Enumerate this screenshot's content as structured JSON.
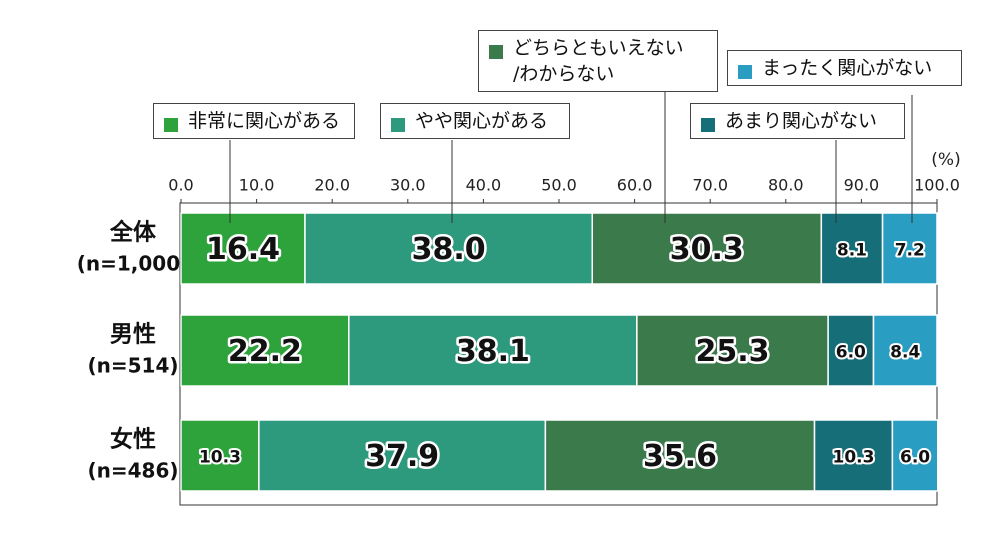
{
  "chart_data": {
    "type": "stacked-bar-horizontal",
    "unit": "(%)",
    "categories": [
      "全体",
      "男性",
      "女性"
    ],
    "category_notes": [
      "(n=1,000)",
      "(n=514)",
      "(n=486)"
    ],
    "xlim": [
      0,
      100
    ],
    "xticks": [
      {
        "value": 0,
        "label": "0.0"
      },
      {
        "value": 10,
        "label": "10.0"
      },
      {
        "value": 20,
        "label": "20.0"
      },
      {
        "value": 30,
        "label": "30.0"
      },
      {
        "value": 40,
        "label": "40.0"
      },
      {
        "value": 50,
        "label": "50.0"
      },
      {
        "value": 60,
        "label": "60.0"
      },
      {
        "value": 70,
        "label": "70.0"
      },
      {
        "value": 80,
        "label": "80.0"
      },
      {
        "value": 90,
        "label": "90.0"
      },
      {
        "value": 100,
        "label": "100.0"
      }
    ],
    "series": [
      {
        "name": "非常に関心がある",
        "color": "#2ea33b",
        "values": [
          16.4,
          22.2,
          10.3
        ],
        "value_labels": [
          "16.4",
          "22.2",
          "10.3"
        ]
      },
      {
        "name": "やや関心がある",
        "color": "#2e9a7d",
        "values": [
          38.0,
          38.1,
          37.9
        ],
        "value_labels": [
          "38.0",
          "38.1",
          "37.9"
        ]
      },
      {
        "name": "どちらともいえない\n/わからない",
        "color": "#3b7a4b",
        "values": [
          30.3,
          25.3,
          35.6
        ],
        "value_labels": [
          "30.3",
          "25.3",
          "35.6"
        ]
      },
      {
        "name": "あまり関心がない",
        "color": "#156e78",
        "values": [
          8.1,
          6.0,
          10.3
        ],
        "value_labels": [
          "8.1",
          "6.0",
          "10.3"
        ]
      },
      {
        "name": "まったく関心がない",
        "color": "#2a9dc2",
        "values": [
          7.2,
          8.4,
          6.0
        ],
        "value_labels": [
          "7.2",
          "8.4",
          "6.0"
        ]
      }
    ]
  }
}
